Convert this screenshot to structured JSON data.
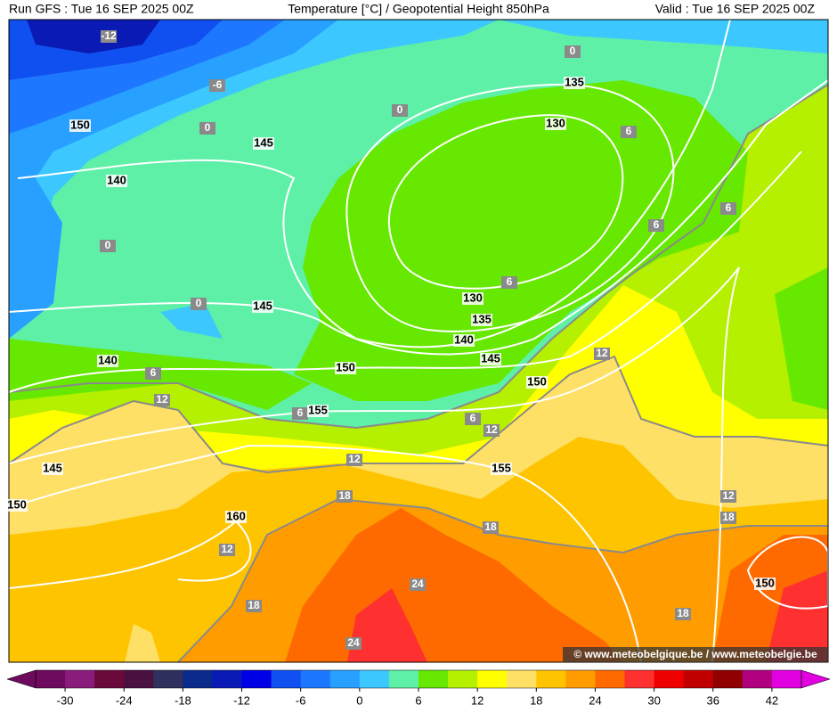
{
  "header": {
    "run": "Run GFS : Tue 16 SEP 2025 00Z",
    "title": "Temperature [°C] / Geopotential Height 850hPa",
    "valid": "Valid : Tue 16 SEP 2025 00Z"
  },
  "contour_labels": {
    "temperature": [
      -12,
      -6,
      0,
      0,
      0,
      0,
      0,
      6,
      6,
      6,
      6,
      6,
      12,
      6,
      6,
      12,
      12,
      12,
      18,
      12,
      18,
      12,
      18,
      24,
      18,
      18,
      24
    ],
    "height": [
      135,
      130,
      150,
      145,
      140,
      145,
      130,
      135,
      140,
      145,
      140,
      150,
      150,
      155,
      155,
      145,
      150,
      160,
      150
    ]
  },
  "colorbar": {
    "range": [
      -33,
      45
    ],
    "colors": [
      "#6e0a5e",
      "#8a1c7c",
      "#6a0a3a",
      "#4a1040",
      "#30305e",
      "#0a2a8c",
      "#0a1ab4",
      "#0000e6",
      "#1050f0",
      "#1e78ff",
      "#28a0ff",
      "#3cc8ff",
      "#5ef0a6",
      "#66e800",
      "#b4f000",
      "#ffff00",
      "#ffe066",
      "#ffc400",
      "#ff9c00",
      "#ff6a00",
      "#ff3030",
      "#ee0000",
      "#c00000",
      "#900000",
      "#b00080",
      "#e000e0"
    ],
    "ticks": [
      -30,
      -24,
      -18,
      -12,
      -6,
      0,
      6,
      12,
      18,
      24,
      30,
      36,
      42
    ]
  },
  "credit": "© www.meteobelgique.be / www.meteobelgie.be"
}
